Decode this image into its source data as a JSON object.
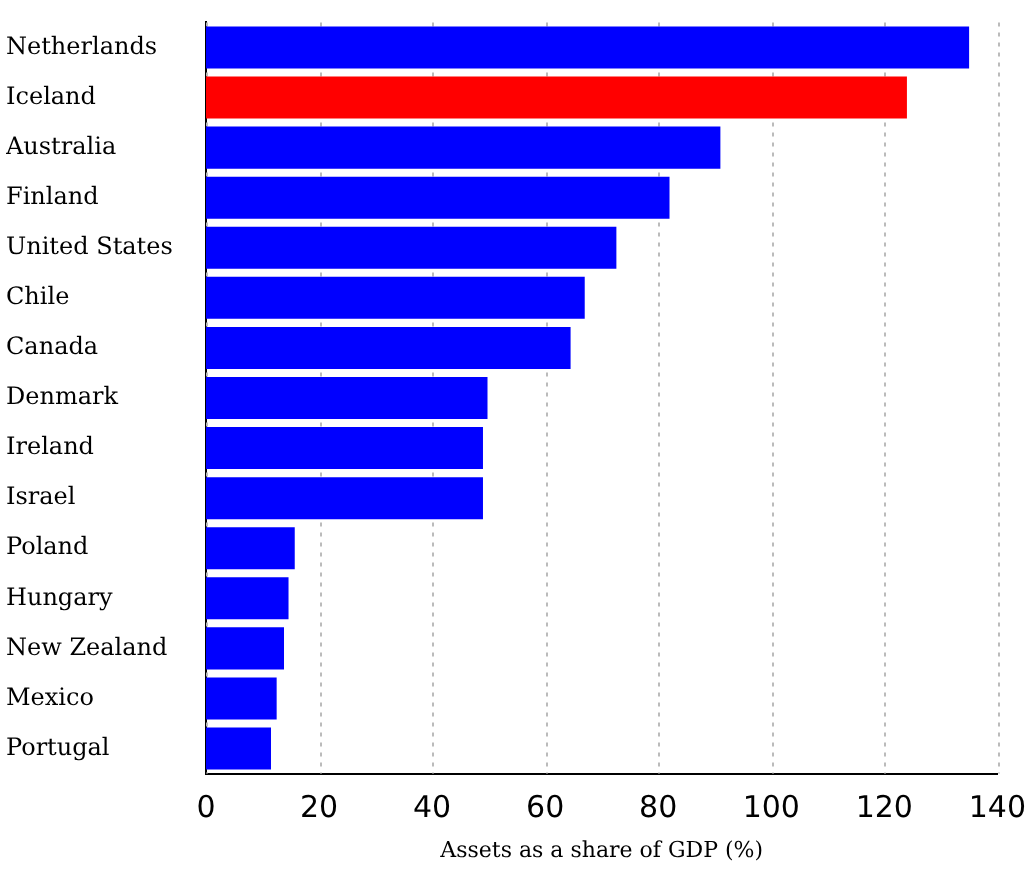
{
  "chart_data": {
    "type": "bar",
    "orientation": "horizontal",
    "xlabel": "Assets as a share of GDP (%)",
    "categories": [
      "Netherlands",
      "Iceland",
      "Australia",
      "Finland",
      "United States",
      "Chile",
      "Canada",
      "Denmark",
      "Ireland",
      "Israel",
      "Poland",
      "Hungary",
      "New Zealand",
      "Mexico",
      "Portugal"
    ],
    "values": [
      135,
      124,
      91,
      82,
      72.6,
      67,
      64.5,
      49.8,
      49,
      49,
      15.7,
      14.6,
      13.8,
      12.5,
      11.5
    ],
    "colors": [
      "#0000ff",
      "#ff0000",
      "#0000ff",
      "#0000ff",
      "#0000ff",
      "#0000ff",
      "#0000ff",
      "#0000ff",
      "#0000ff",
      "#0000ff",
      "#0000ff",
      "#0000ff",
      "#0000ff",
      "#0000ff",
      "#0000ff"
    ],
    "xlim": [
      0,
      140
    ],
    "xticks": [
      0,
      20,
      40,
      60,
      80,
      100,
      120,
      140
    ],
    "grid": "x",
    "legend": false
  }
}
